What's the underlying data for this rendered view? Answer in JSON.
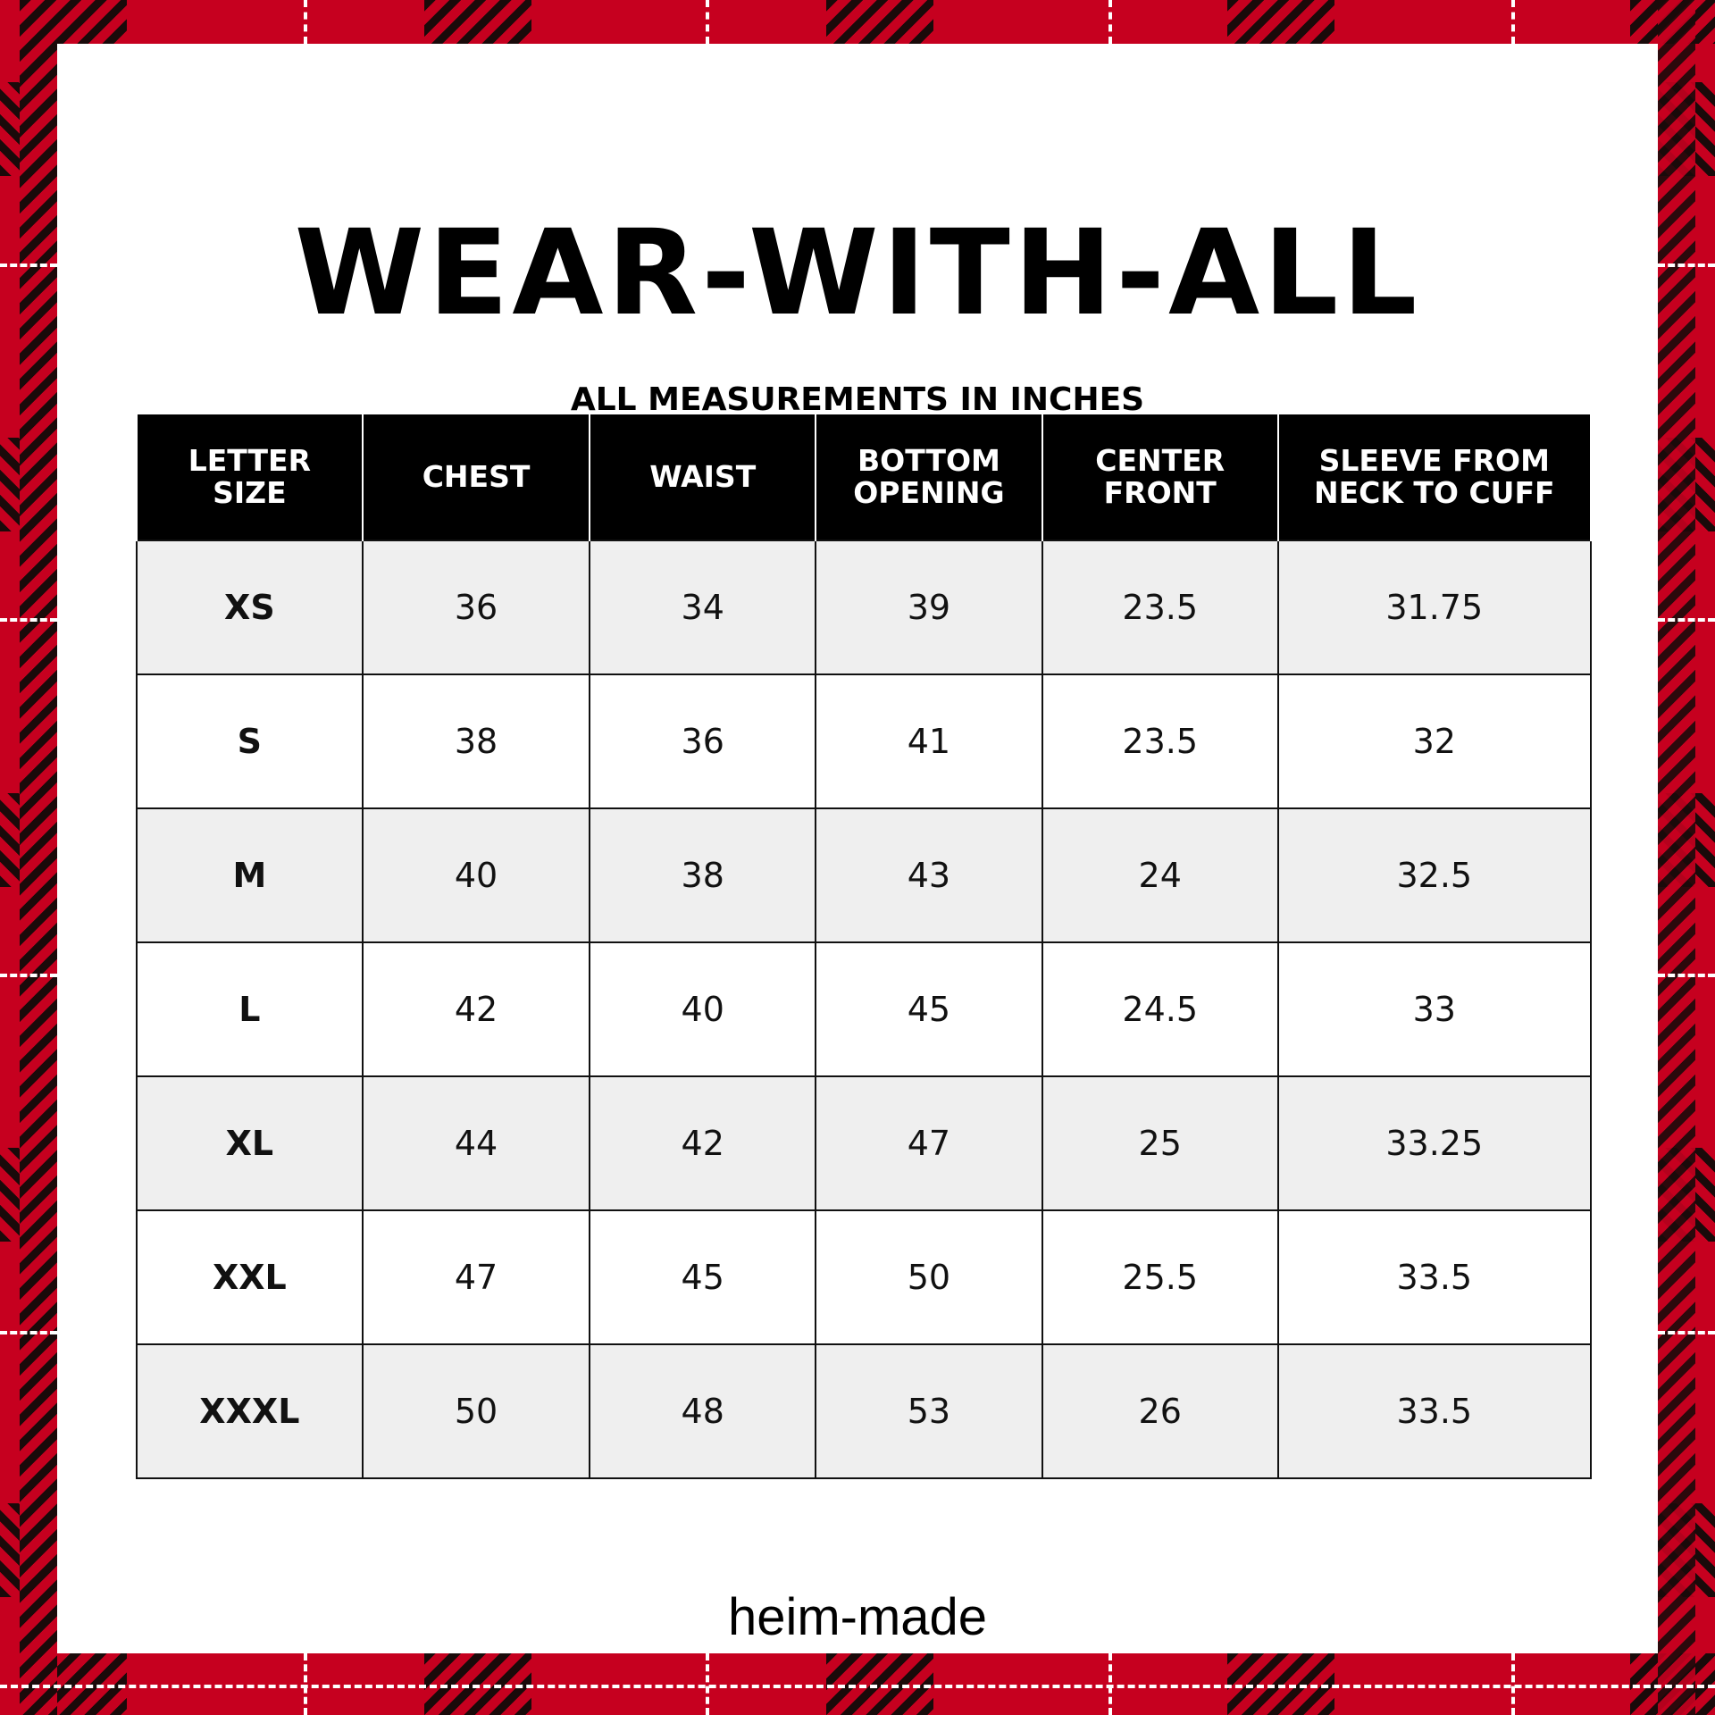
{
  "title": "WEAR-WITH-ALL",
  "subtitle": "ALL MEASUREMENTS IN INCHES",
  "colors": {
    "plaid_red": "#c6001f",
    "plaid_black": "#1a0a0a",
    "header_bg": "#000000",
    "alt_row": "#efefef"
  },
  "table": {
    "headers": [
      "LETTER SIZE",
      "CHEST",
      "WAIST",
      "BOTTOM OPENING",
      "CENTER FRONT",
      "SLEEVE FROM NECK TO CUFF"
    ],
    "rows": [
      [
        "XS",
        "36",
        "34",
        "39",
        "23.5",
        "31.75"
      ],
      [
        "S",
        "38",
        "36",
        "41",
        "23.5",
        "32"
      ],
      [
        "M",
        "40",
        "38",
        "43",
        "24",
        "32.5"
      ],
      [
        "L",
        "42",
        "40",
        "45",
        "24.5",
        "33"
      ],
      [
        "XL",
        "44",
        "42",
        "47",
        "25",
        "33.25"
      ],
      [
        "XXL",
        "47",
        "45",
        "50",
        "25.5",
        "33.5"
      ],
      [
        "XXXL",
        "50",
        "48",
        "53",
        "26",
        "33.5"
      ]
    ]
  },
  "brand": "heim-made"
}
